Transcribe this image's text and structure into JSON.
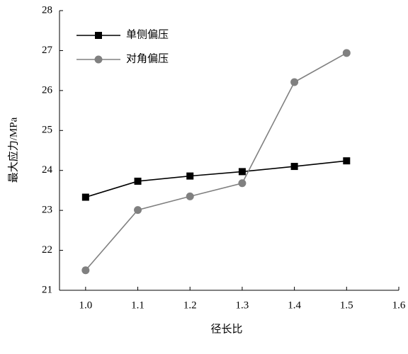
{
  "chart_data": {
    "type": "line",
    "x_label": "径长比",
    "y_label": "最大应力/MPa",
    "x": [
      1.0,
      1.1,
      1.2,
      1.3,
      1.4,
      1.5
    ],
    "series": [
      {
        "name": "单侧偏压",
        "color": "#000000",
        "marker": "square",
        "line_color": "#000000",
        "values": [
          23.33,
          23.73,
          23.86,
          23.97,
          24.1,
          24.24
        ]
      },
      {
        "name": "对角偏压",
        "color": "#808080",
        "marker": "circle",
        "line_color": "#808080",
        "values": [
          21.5,
          23.01,
          23.35,
          23.68,
          26.21,
          26.94
        ]
      }
    ],
    "xlim": [
      0.95,
      1.6
    ],
    "xticks": [
      {
        "value": 1,
        "label": "1.0"
      },
      1.1,
      1.2,
      1.3,
      1.4,
      1.5,
      1.6
    ],
    "ylim": [
      21,
      28
    ],
    "yticks": [
      21,
      22,
      23,
      24,
      25,
      26,
      27,
      28
    ],
    "grid": false,
    "legend": "upper left"
  }
}
